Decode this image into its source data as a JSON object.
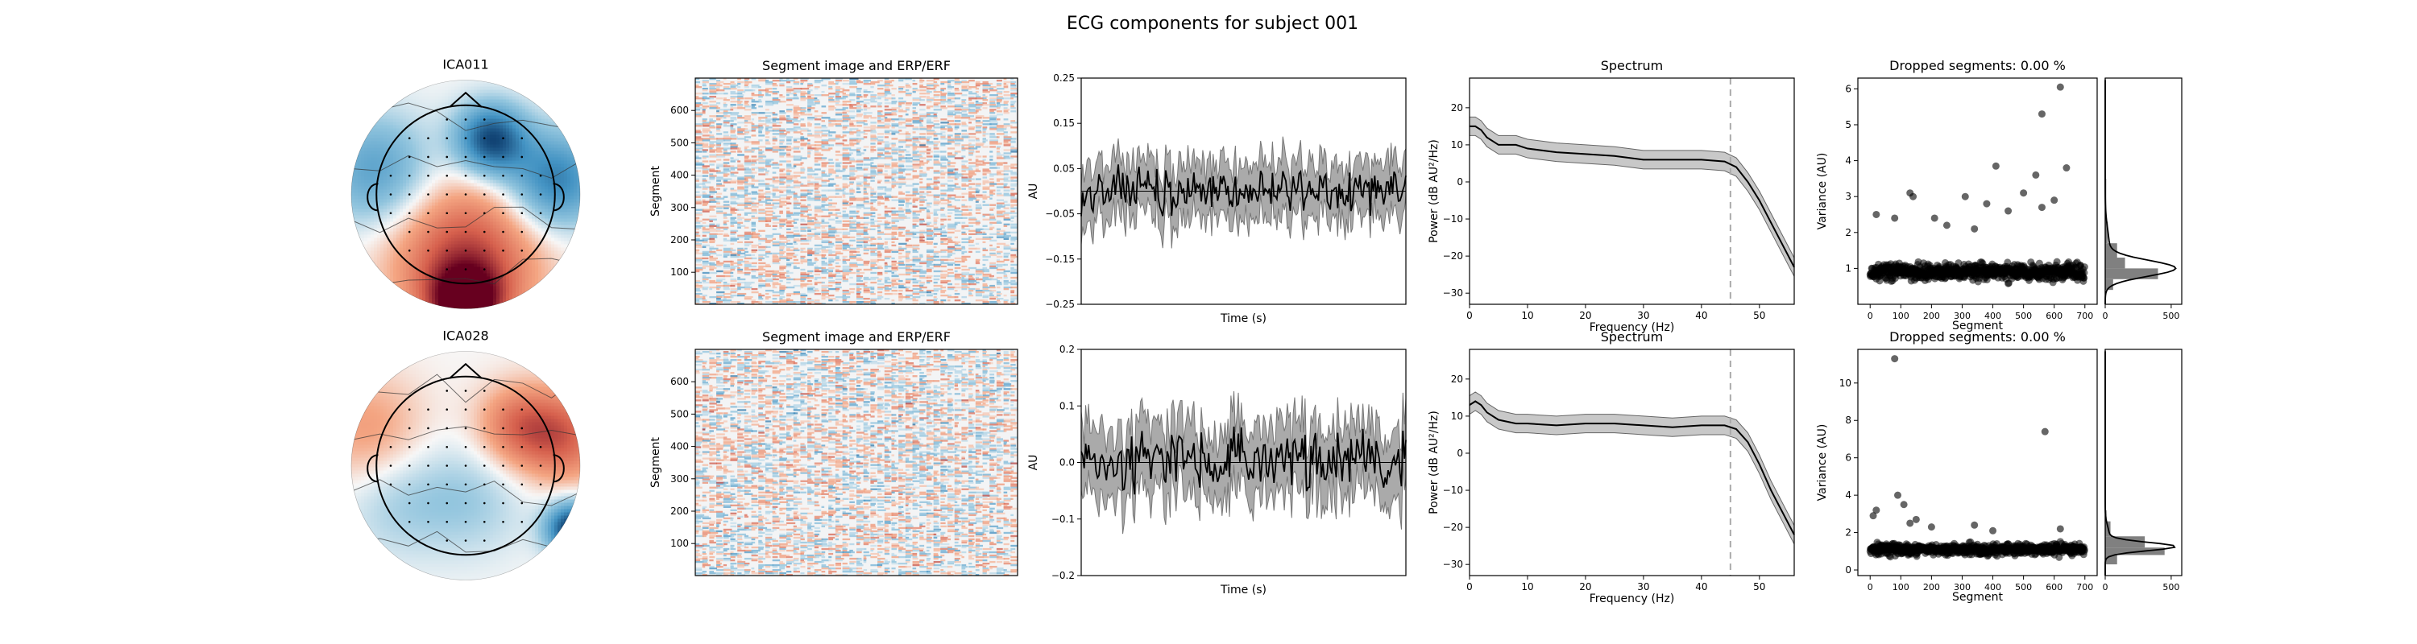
{
  "title": "ECG components for subject 001",
  "chart_data": [
    {
      "component": "ICA011",
      "topomap": {
        "type": "topomap",
        "title": "ICA011",
        "colormap": "RdBu_r",
        "blobs": [
          {
            "u": 0.22,
            "v": 0.48,
            "sign": -1,
            "strength": 0.9,
            "spread": 0.22
          },
          {
            "u": 0.78,
            "v": 0.12,
            "sign": -1,
            "strength": 0.7,
            "spread": 0.3
          },
          {
            "u": -0.78,
            "v": 0.2,
            "sign": -1,
            "strength": 0.5,
            "spread": 0.35
          },
          {
            "u": 0.0,
            "v": -0.95,
            "sign": 1,
            "strength": 1.0,
            "spread": 0.22
          },
          {
            "u": 0.0,
            "v": -0.55,
            "sign": 1,
            "strength": 0.7,
            "spread": 0.45
          }
        ]
      },
      "image": {
        "type": "heatmap",
        "title": "Segment image and ERP/ERF",
        "ylabel": "Segment",
        "yticks": [
          100,
          200,
          300,
          400,
          500,
          600
        ],
        "ylim": [
          1,
          700
        ],
        "colormap": "RdBu_r"
      },
      "erp": {
        "type": "line",
        "ylabel": "AU",
        "xlabel": "Time (s)",
        "yticks": [
          "0.25",
          "0.15",
          "0.05",
          "−0.05",
          "−0.15",
          "−0.25"
        ],
        "ytick_values": [
          0.25,
          0.15,
          0.05,
          -0.05,
          -0.15,
          -0.25
        ],
        "ylim": [
          -0.25,
          0.25
        ],
        "mean": 0.005,
        "noise": 0.035,
        "band": 0.06,
        "hline": 0
      },
      "spectrum": {
        "type": "line",
        "title": "Spectrum",
        "xlabel": "Frequency (Hz)",
        "ylabel": "Power (dB AU²/Hz)",
        "xticks": [
          0,
          10,
          20,
          30,
          40,
          50
        ],
        "yticks": [
          "20",
          "10",
          "0",
          "−10",
          "−20",
          "−30"
        ],
        "ytick_values": [
          20,
          10,
          0,
          -10,
          -20,
          -30
        ],
        "xlim": [
          0,
          56
        ],
        "ylim": [
          -33,
          28
        ],
        "vline": 45,
        "x": [
          0,
          1,
          2,
          3,
          5,
          8,
          10,
          15,
          20,
          25,
          30,
          35,
          40,
          44,
          46,
          48,
          50,
          52,
          54,
          56
        ],
        "y": [
          15,
          15,
          14,
          12,
          10,
          10,
          9,
          8,
          7.5,
          7,
          6,
          6,
          6,
          5.5,
          4,
          0,
          -5,
          -11,
          -17,
          -23
        ],
        "band": 2.5
      },
      "variance": {
        "type": "scatter",
        "title": "Dropped segments: 0.00 %",
        "xlabel": "Segment",
        "ylabel": "Variance (AU)",
        "xticks": [
          0,
          100,
          200,
          300,
          400,
          500,
          600,
          700
        ],
        "yticks": [
          1,
          2,
          3,
          4,
          5,
          6
        ],
        "xlim": [
          -40,
          740
        ],
        "ylim": [
          0,
          6.3
        ],
        "n": 700,
        "base": 0.9,
        "spread": 0.25,
        "outliers": [
          [
            620,
            6.05
          ],
          [
            560,
            5.3
          ],
          [
            640,
            3.8
          ],
          [
            410,
            3.85
          ],
          [
            540,
            3.6
          ],
          [
            500,
            3.1
          ],
          [
            130,
            3.1
          ],
          [
            140,
            3.0
          ],
          [
            310,
            3.0
          ],
          [
            600,
            2.9
          ],
          [
            20,
            2.5
          ],
          [
            80,
            2.4
          ],
          [
            380,
            2.8
          ],
          [
            560,
            2.7
          ],
          [
            210,
            2.4
          ],
          [
            450,
            2.6
          ],
          [
            250,
            2.2
          ],
          [
            340,
            2.1
          ]
        ]
      },
      "histogram": {
        "type": "bar",
        "xticks": [
          0,
          500
        ],
        "xlim": [
          0,
          580
        ],
        "bins": [
          {
            "lo": 0.4,
            "hi": 0.7,
            "count": 60
          },
          {
            "lo": 0.7,
            "hi": 1.0,
            "count": 400
          },
          {
            "lo": 1.0,
            "hi": 1.3,
            "count": 150
          },
          {
            "lo": 1.3,
            "hi": 1.7,
            "count": 90
          },
          {
            "lo": 1.7,
            "hi": 2.3,
            "count": 20
          },
          {
            "lo": 2.3,
            "hi": 3.5,
            "count": 8
          }
        ],
        "kde_peak": 1.0
      }
    },
    {
      "component": "ICA028",
      "topomap": {
        "type": "topomap",
        "title": "ICA028",
        "colormap": "RdBu_r",
        "blobs": [
          {
            "u": 0.93,
            "v": -0.55,
            "sign": -1,
            "strength": 1.0,
            "spread": 0.16
          },
          {
            "u": 0.45,
            "v": 0.35,
            "sign": 1,
            "strength": 0.45,
            "spread": 0.25
          },
          {
            "u": 0.85,
            "v": 0.25,
            "sign": 1,
            "strength": 0.55,
            "spread": 0.28
          },
          {
            "u": -0.85,
            "v": 0.3,
            "sign": 1,
            "strength": 0.3,
            "spread": 0.35
          },
          {
            "u": -0.6,
            "v": -0.3,
            "sign": -1,
            "strength": 0.2,
            "spread": 0.35
          },
          {
            "u": 0.05,
            "v": -0.3,
            "sign": -1,
            "strength": 0.2,
            "spread": 0.35
          }
        ]
      },
      "image": {
        "type": "heatmap",
        "title": "Segment image and ERP/ERF",
        "ylabel": "Segment",
        "yticks": [
          100,
          200,
          300,
          400,
          500,
          600
        ],
        "ylim": [
          1,
          700
        ],
        "colormap": "RdBu_r"
      },
      "erp": {
        "type": "line",
        "ylabel": "AU",
        "xlabel": "Time (s)",
        "yticks": [
          "0.2",
          "0.1",
          "0.0",
          "−0.1",
          "−0.2"
        ],
        "ytick_values": [
          0.2,
          0.1,
          0.0,
          -0.1,
          -0.2
        ],
        "ylim": [
          -0.2,
          0.2
        ],
        "mean": 0.01,
        "noise": 0.035,
        "band": 0.06,
        "hline": 0
      },
      "spectrum": {
        "type": "line",
        "title": "Spectrum",
        "xlabel": "Frequency (Hz)",
        "ylabel": "Power (dB AU²/Hz)",
        "xticks": [
          0,
          10,
          20,
          30,
          40,
          50
        ],
        "yticks": [
          "20",
          "10",
          "0",
          "−10",
          "−20",
          "−30"
        ],
        "ytick_values": [
          20,
          10,
          0,
          -10,
          -20,
          -30
        ],
        "xlim": [
          0,
          56
        ],
        "ylim": [
          -33,
          28
        ],
        "vline": 45,
        "x": [
          0,
          1,
          2,
          3,
          5,
          8,
          10,
          15,
          20,
          25,
          30,
          35,
          40,
          44,
          46,
          48,
          50,
          52,
          54,
          56
        ],
        "y": [
          13,
          14,
          13,
          11,
          9,
          8,
          8,
          7.5,
          8,
          8,
          7.5,
          7,
          7.5,
          7.5,
          6.5,
          3,
          -3,
          -10,
          -16,
          -22
        ],
        "band": 2.5
      },
      "variance": {
        "type": "scatter",
        "title": "Dropped segments: 0.00 %",
        "xlabel": "Segment",
        "ylabel": "Variance (AU)",
        "xticks": [
          0,
          100,
          200,
          300,
          400,
          500,
          600,
          700
        ],
        "yticks": [
          0,
          2,
          4,
          6,
          8,
          10
        ],
        "xlim": [
          -40,
          740
        ],
        "ylim": [
          -0.3,
          11.8
        ],
        "n": 700,
        "base": 1.1,
        "spread": 0.35,
        "outliers": [
          [
            80,
            11.3
          ],
          [
            570,
            7.4
          ],
          [
            90,
            4.0
          ],
          [
            110,
            3.5
          ],
          [
            20,
            3.2
          ],
          [
            10,
            2.9
          ],
          [
            150,
            2.7
          ],
          [
            130,
            2.5
          ],
          [
            200,
            2.3
          ],
          [
            340,
            2.4
          ],
          [
            400,
            2.1
          ],
          [
            620,
            2.2
          ]
        ]
      },
      "histogram": {
        "type": "bar",
        "xticks": [
          0,
          500
        ],
        "xlim": [
          0,
          580
        ],
        "bins": [
          {
            "lo": 0.3,
            "hi": 0.8,
            "count": 90
          },
          {
            "lo": 0.8,
            "hi": 1.2,
            "count": 450
          },
          {
            "lo": 1.2,
            "hi": 1.8,
            "count": 300
          },
          {
            "lo": 1.8,
            "hi": 2.6,
            "count": 40
          },
          {
            "lo": 2.6,
            "hi": 3.2,
            "count": 10
          }
        ],
        "kde_peak": 1.25
      }
    }
  ]
}
